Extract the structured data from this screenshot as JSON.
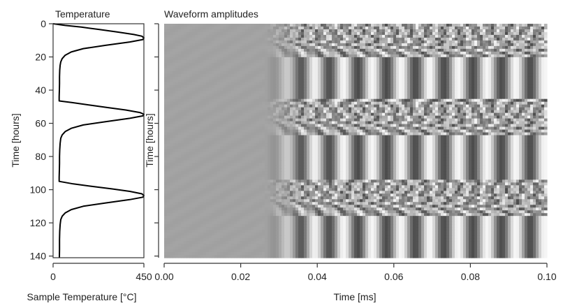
{
  "chart_data": [
    {
      "type": "line",
      "title": "Temperature",
      "xlabel": "Sample Temperature [°C]",
      "ylabel": "Time [hours]",
      "xlim": [
        0,
        450
      ],
      "ylim": [
        0,
        141
      ],
      "y_inverted": true,
      "xticks": [
        0,
        450
      ],
      "yticks": [
        0,
        20,
        40,
        60,
        80,
        100,
        120,
        140
      ],
      "grid": false,
      "series": [
        {
          "x": [
            0,
            60,
            140,
            230,
            320,
            400,
            440,
            450,
            445,
            380,
            260,
            150,
            90,
            60,
            45,
            38,
            35,
            33,
            32,
            32,
            31,
            30,
            30,
            95,
            180,
            270,
            360,
            430,
            450,
            445,
            380,
            260,
            150,
            90,
            60,
            45,
            38,
            35,
            33,
            32,
            32,
            31,
            30,
            30,
            100,
            190,
            290,
            380,
            440,
            450,
            445,
            380,
            260,
            150,
            90,
            60,
            45,
            38,
            35,
            33,
            32,
            32,
            31
          ],
          "y": [
            0,
            1,
            2,
            3.5,
            5,
            6.5,
            7.5,
            8.5,
            9.5,
            11,
            13,
            15,
            17,
            19,
            21,
            23,
            25,
            28,
            32,
            36,
            40,
            44,
            46.5,
            47.5,
            49,
            50.5,
            52,
            53.5,
            54.5,
            55.5,
            57,
            59,
            61,
            63,
            65,
            67,
            69,
            72,
            76,
            80,
            84,
            88,
            92.5,
            95,
            96.5,
            98,
            99.5,
            101,
            102.5,
            103.5,
            104.5,
            106,
            108,
            110,
            112,
            114,
            116,
            118,
            121,
            125,
            130,
            136,
            141
          ]
        }
      ]
    },
    {
      "type": "heatmap",
      "title": "Waveform amplitudes",
      "xlabel": "Time [ms]",
      "ylabel": "Time [hours]",
      "xlim": [
        0,
        0.1
      ],
      "ylim": [
        0,
        141
      ],
      "y_inverted": true,
      "xticks": [
        "0.00",
        "0.02",
        "0.04",
        "0.06",
        "0.08",
        "0.10"
      ],
      "colormap": "grayscale",
      "color_range": [
        "#111111",
        "#f4f4f4"
      ],
      "background_gray": "#a4a4a4",
      "signal_onset_ms": 0.03,
      "band_period_ms": 0.0075,
      "heating_events_hours": [
        0,
        47,
        95
      ]
    }
  ]
}
